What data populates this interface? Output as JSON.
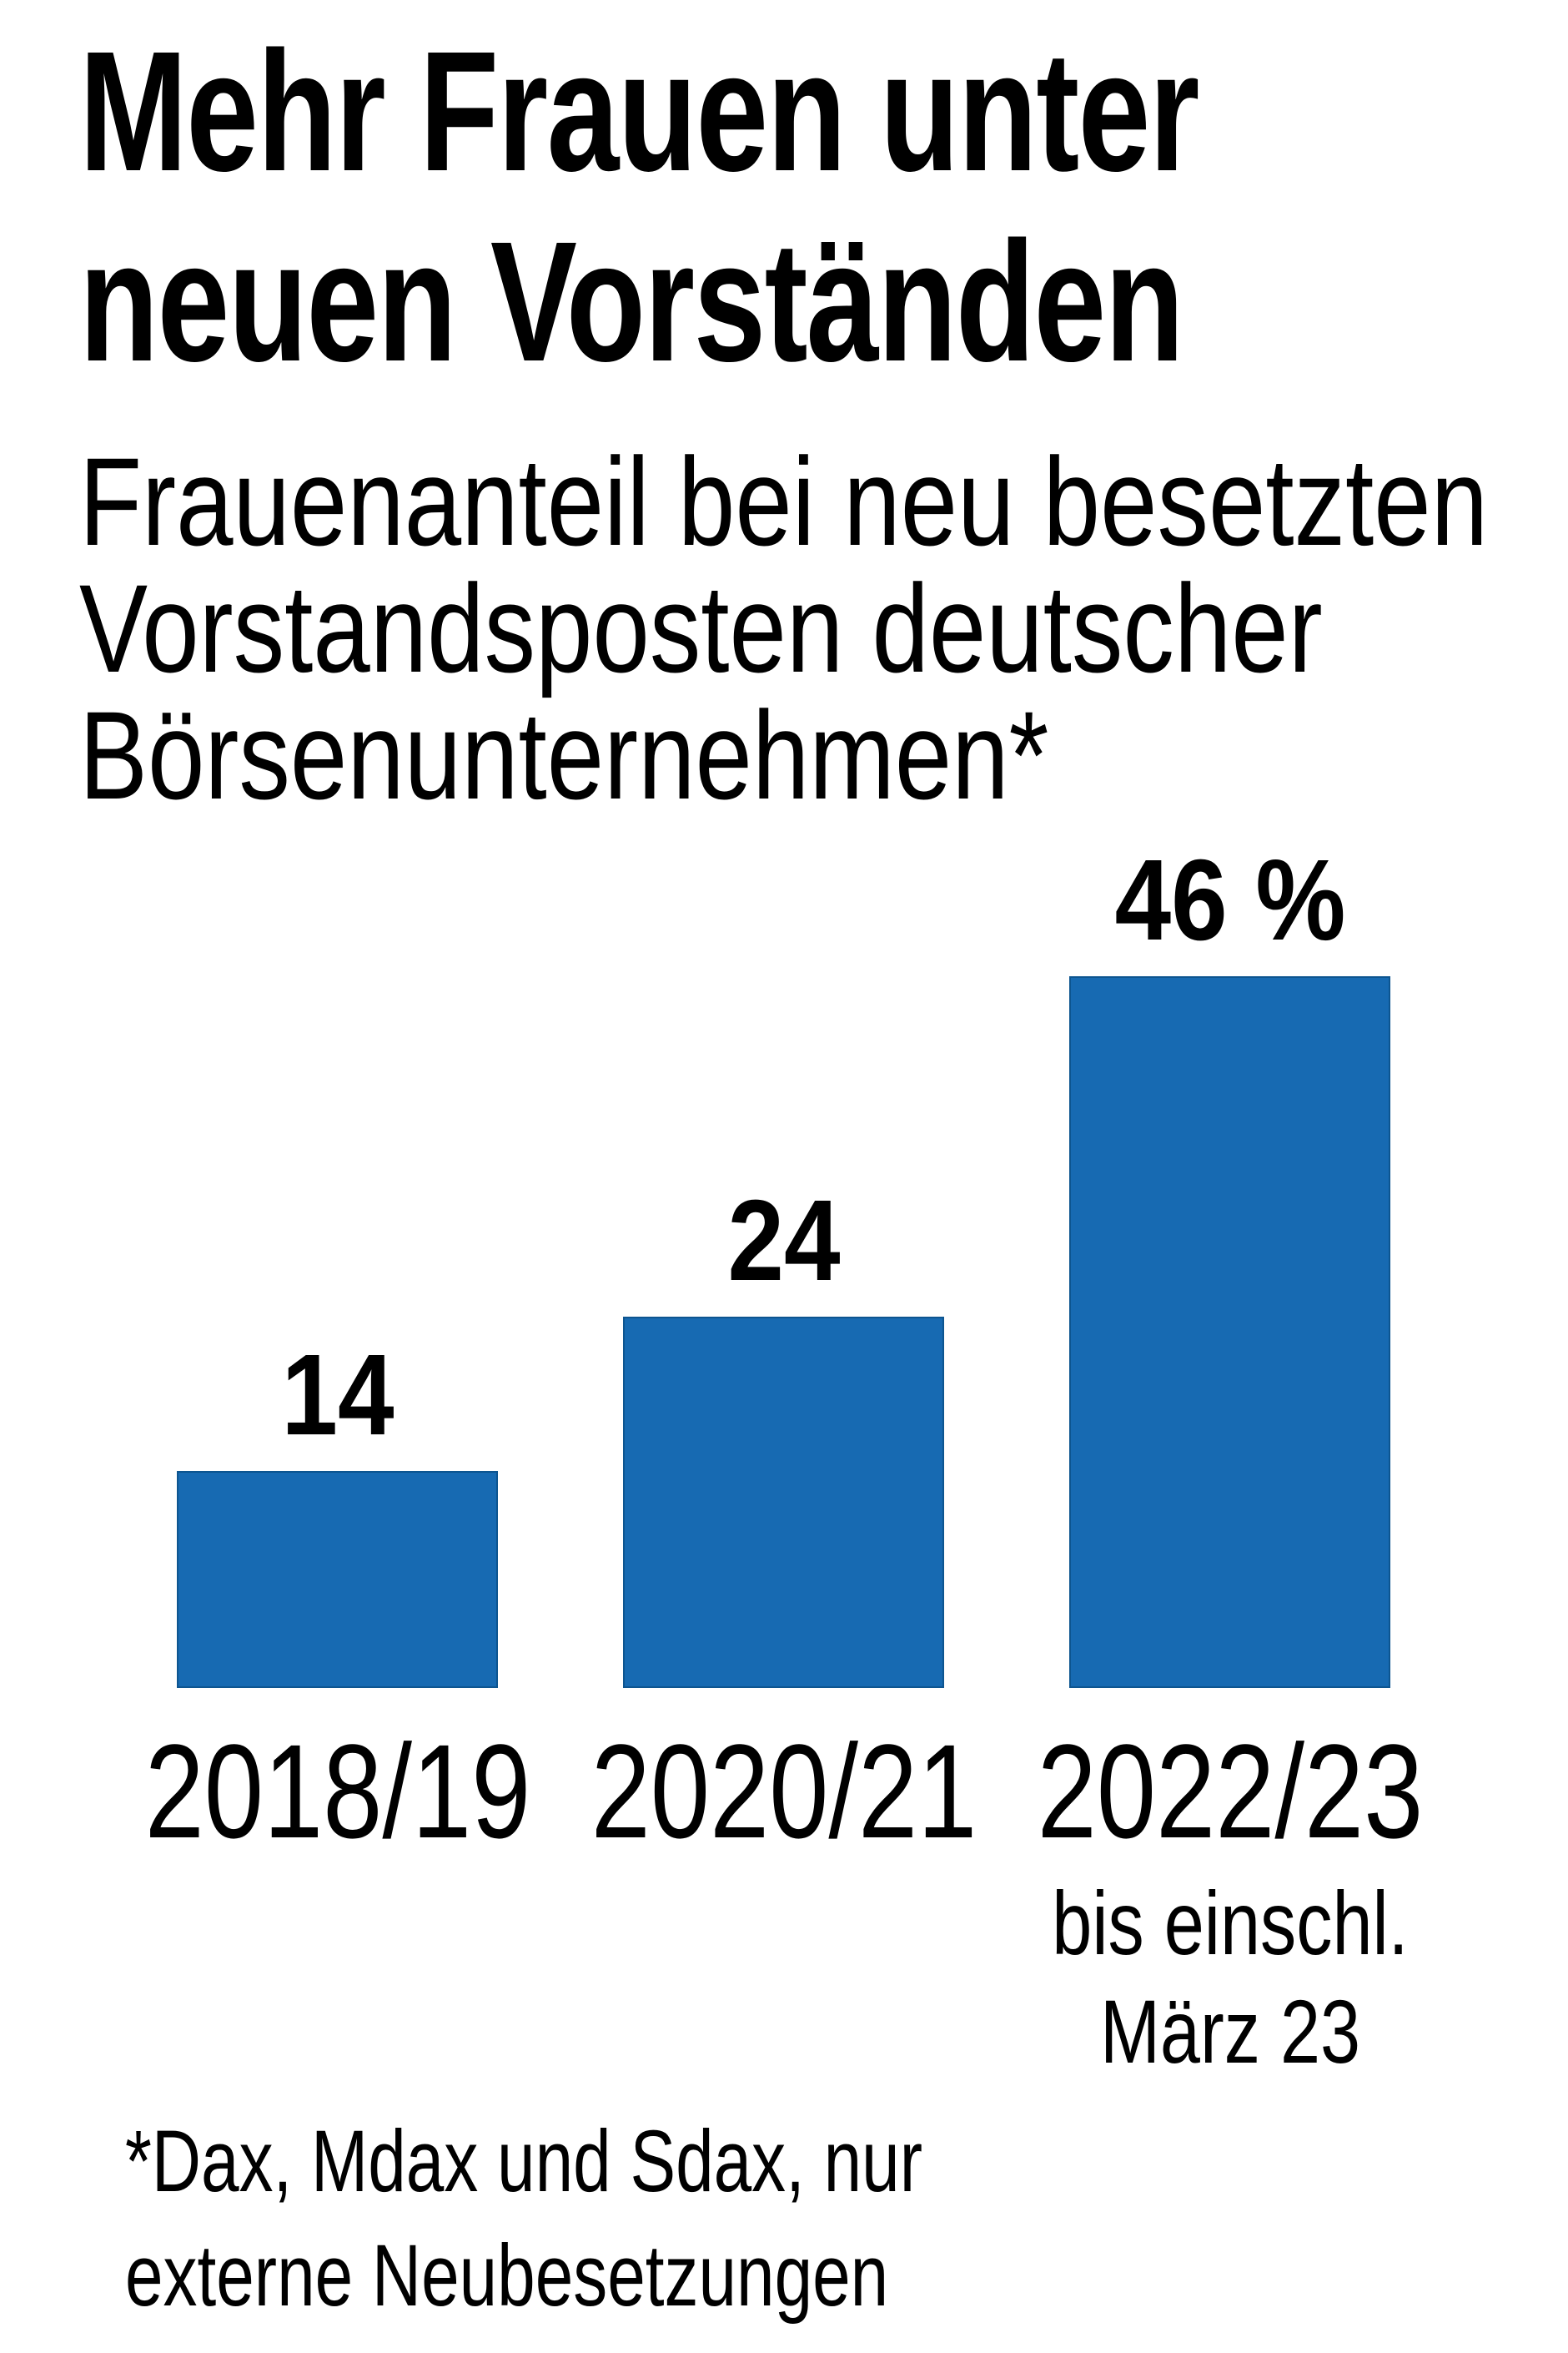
{
  "header": {
    "title_lines": [
      "Mehr Frauen unter",
      "neuen Vorständen"
    ],
    "subtitle_lines": [
      "Frauenanteil bei neu besetzten",
      "Vorstandsposten deutscher",
      "Börsenunternehmen*"
    ]
  },
  "chart_data": {
    "type": "bar",
    "title": "Mehr Frauen unter neuen Vorständen",
    "subtitle": "Frauenanteil bei neu besetzten Vorstandsposten deutscher Börsenunternehmen*",
    "categories": [
      "2018/19",
      "2020/21",
      "2022/23"
    ],
    "values": [
      14,
      24,
      46
    ],
    "value_labels": [
      "14",
      "24",
      "46 %"
    ],
    "unit": "%",
    "ylim": [
      0,
      50
    ],
    "grid": false,
    "legend": false,
    "category_note": {
      "category": "2022/23",
      "lines": [
        "bis einschl.",
        "März 23"
      ]
    },
    "colors": {
      "bar_fill": "#176ab2",
      "bar_border": "#0d5590",
      "text": "#000000",
      "background": "#ffffff"
    }
  },
  "footnote_lines": [
    "*Dax, Mdax und Sdax, nur",
    "externe Neubesetzungen"
  ]
}
